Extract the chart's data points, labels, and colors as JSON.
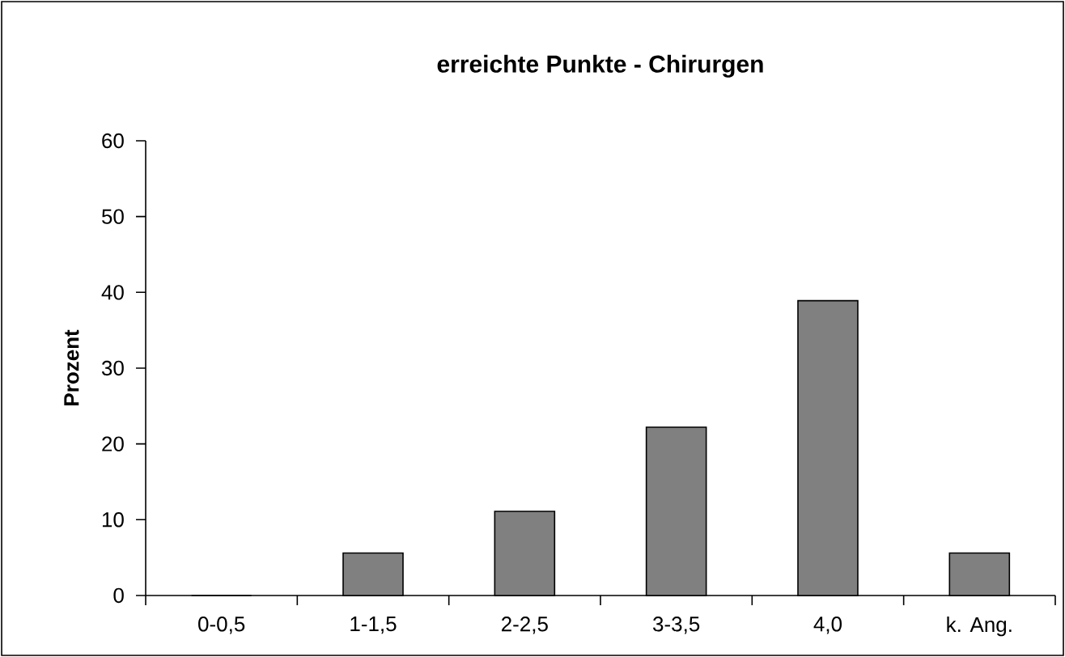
{
  "chart_data": {
    "type": "bar",
    "title": "erreichte Punkte - Chirurgen",
    "ylabel": "Prozent",
    "categories": [
      "0-0,5",
      "1-1,5",
      "2-2,5",
      "3-3,5",
      "4,0",
      "k. Ang."
    ],
    "values": [
      0,
      5.6,
      11.1,
      22.2,
      38.9,
      5.6
    ],
    "color": "#808080",
    "ylim": [
      0,
      60
    ],
    "yticks": [
      0,
      10,
      20,
      30,
      40,
      50,
      60
    ]
  }
}
